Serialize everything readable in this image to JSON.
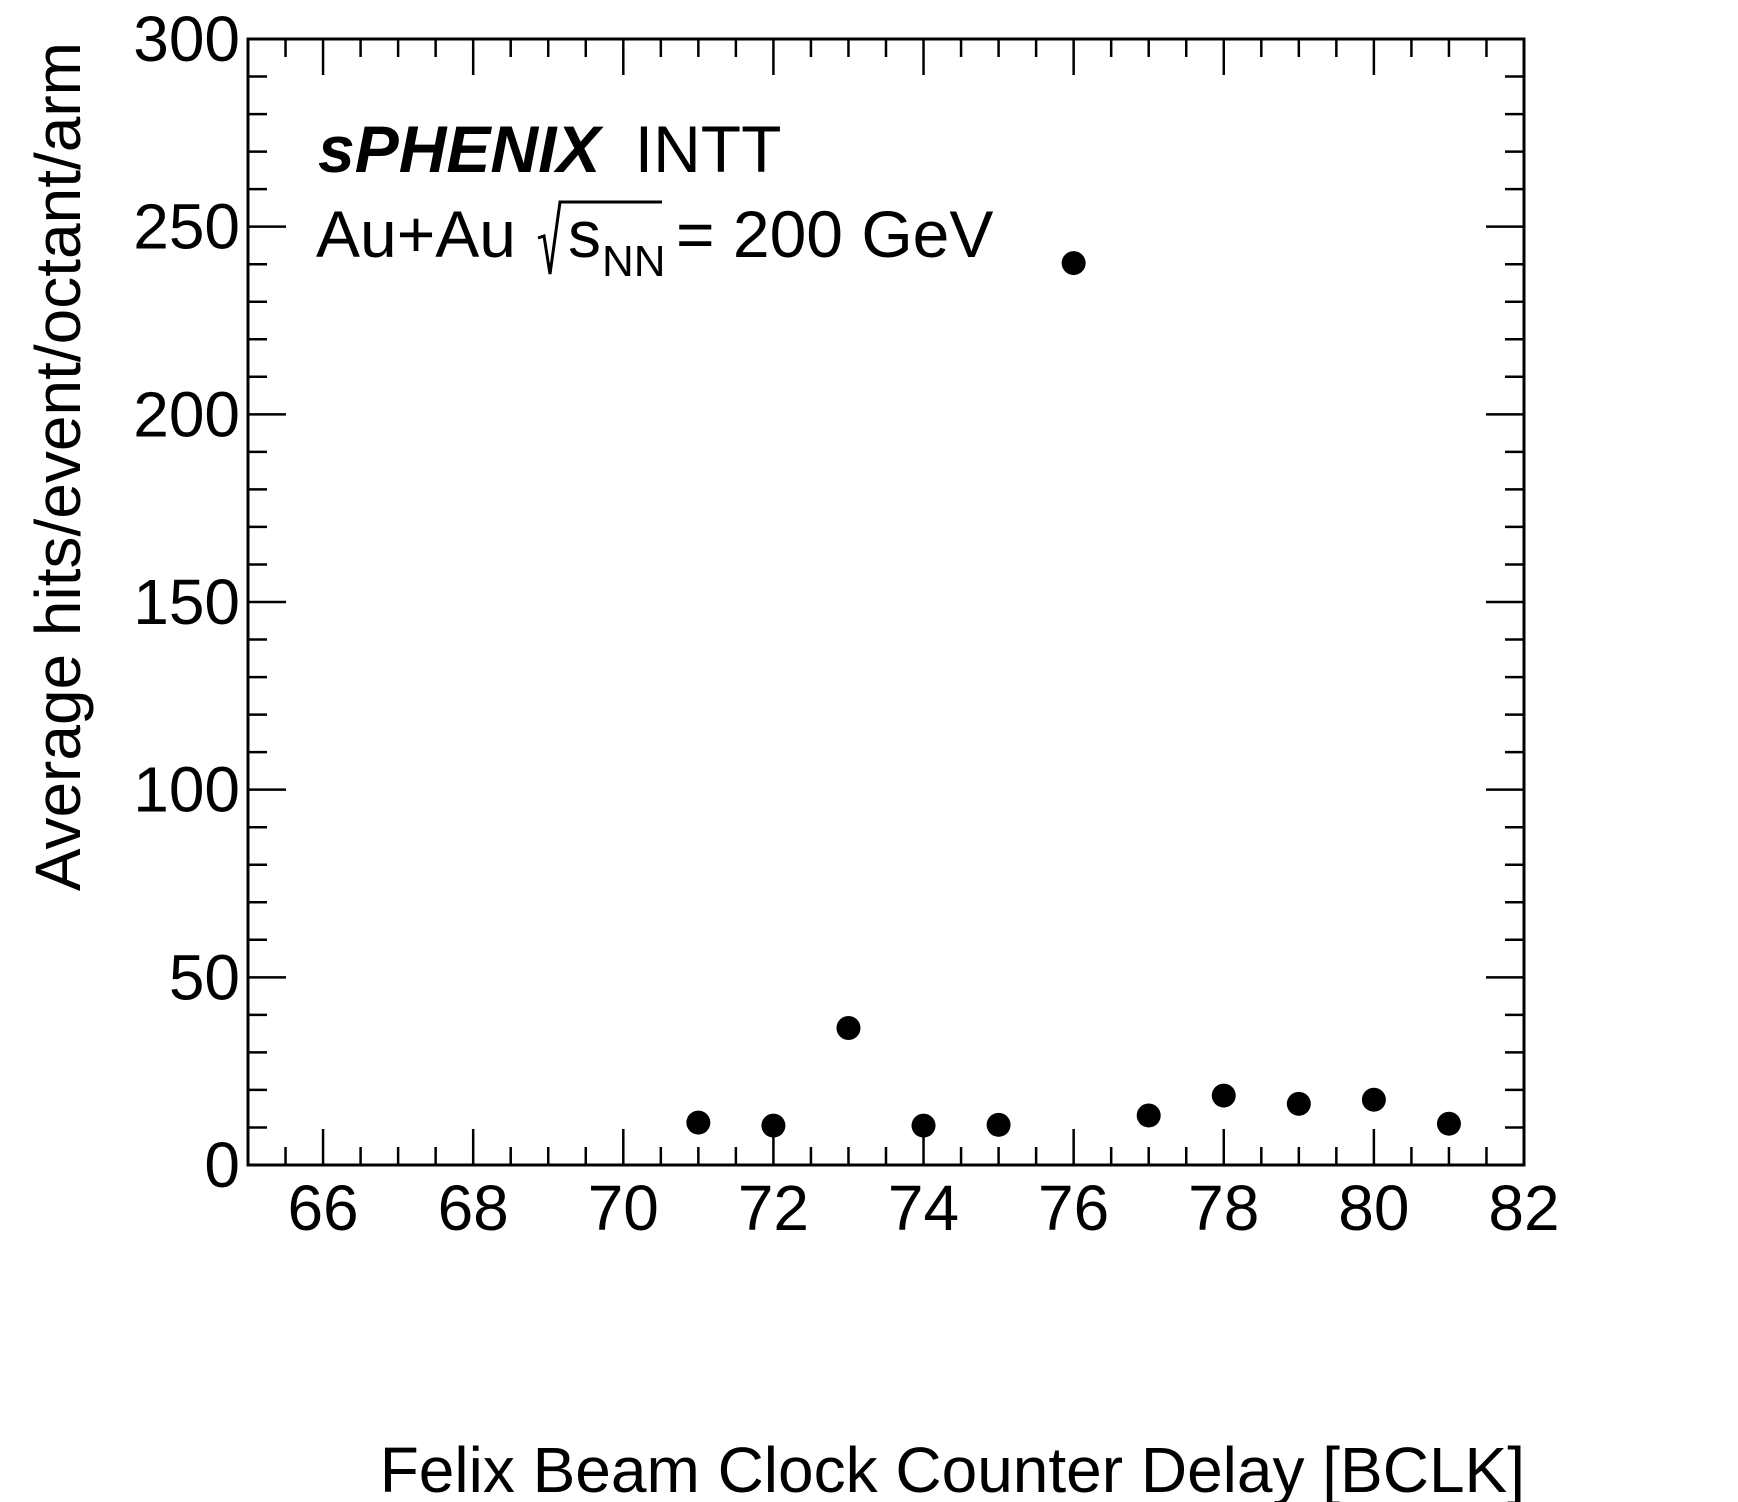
{
  "chart_data": {
    "type": "scatter",
    "xlabel": "Felix Beam Clock Counter Delay [BCLK]",
    "ylabel": "Average hits/event/octant/arm",
    "xlim": [
      65,
      82
    ],
    "ylim": [
      0,
      300
    ],
    "x_ticks": [
      "66",
      "68",
      "70",
      "72",
      "74",
      "76",
      "78",
      "80",
      "82"
    ],
    "y_ticks": [
      "0",
      "50",
      "100",
      "150",
      "200",
      "250",
      "300"
    ],
    "grid": false,
    "marker_color": "#000000",
    "annotations": {
      "experiment": "sPHENIX",
      "detector": "INTT",
      "collision": "Au+Au",
      "energy_symbol": "s",
      "energy_subscript": "NN",
      "energy_value": "= 200 GeV"
    },
    "series": [
      {
        "x": [
          71,
          72,
          73,
          74,
          75,
          76,
          77,
          78,
          79,
          80,
          81
        ],
        "y": [
          11.3,
          10.5,
          36.5,
          10.5,
          10.7,
          240.3,
          13.2,
          18.5,
          16.3,
          17.4,
          11.0
        ]
      }
    ]
  }
}
